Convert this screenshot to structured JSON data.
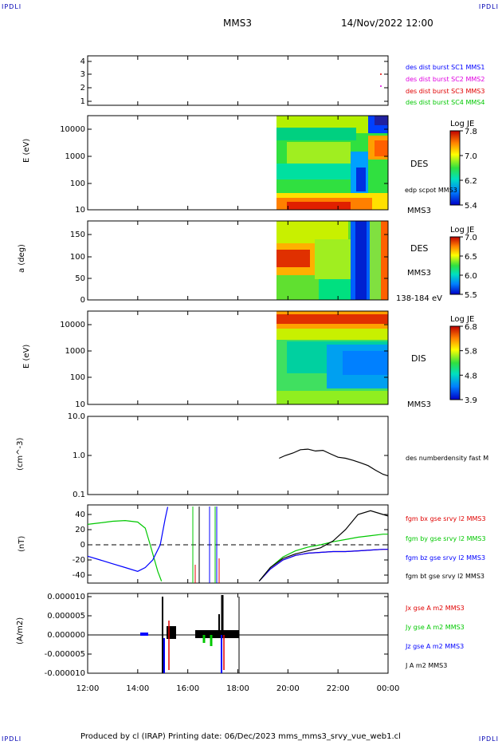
{
  "header": {
    "corner_tl": "IPDLI",
    "corner_tr": "IPDLI",
    "corner_bl": "IPDLI",
    "corner_br": "IPDLI",
    "spacecraft": "MMS3",
    "datetime": "14/Nov/2022 12:00"
  },
  "footer": {
    "text": "Produced by cl (IRAP)   Printing date: 06/Dec/2023   mms_mms3_srvy_vue_web1.cl"
  },
  "colors": {
    "blue": "#0000ff",
    "magenta": "#e000e0",
    "red": "#e00000",
    "green": "#00c800",
    "black": "#000000"
  },
  "time_axis": {
    "ticks": [
      "12:00",
      "14:00",
      "16:00",
      "18:00",
      "20:00",
      "22:00",
      "00:00"
    ],
    "start_hour": 12,
    "end_hour": 24
  },
  "panels": {
    "burst": {
      "yticks": [
        "1",
        "2",
        "3",
        "4"
      ],
      "legend": [
        "des dist burst SC1 MMS1",
        "des dist burst SC2 MMS2",
        "des dist burst SC3 MMS3",
        "des dist burst SC4 MMS4"
      ]
    },
    "des_energy": {
      "ylabel": "E (eV)",
      "yticks": [
        "10",
        "100",
        "1000",
        "10000"
      ],
      "label": "DES",
      "sublabel": "edp scpot MMS3",
      "sc": "MMS3",
      "cbar_title": "Log JE",
      "cbar_ticks": [
        "7.8",
        "7.0",
        "6.2",
        "5.4"
      ]
    },
    "des_pitch": {
      "ylabel": "a (deg)",
      "yticks": [
        "0",
        "50",
        "100",
        "150"
      ],
      "label": "DES",
      "sc": "MMS3",
      "energy_range": "138-184 eV",
      "cbar_title": "Log JE",
      "cbar_ticks": [
        "7.0",
        "6.5",
        "6.0",
        "5.5"
      ]
    },
    "dis_energy": {
      "ylabel": "E (eV)",
      "yticks": [
        "10",
        "100",
        "1000",
        "10000"
      ],
      "label": "DIS",
      "sc": "MMS3",
      "cbar_title": "Log JE",
      "cbar_ticks": [
        "6.8",
        "5.8",
        "4.8",
        "3.9"
      ]
    },
    "density": {
      "ylabel": "(cm^-3)",
      "yticks": [
        "0.1",
        "1.0",
        "10.0"
      ],
      "legend": [
        "des numberdensity fast M"
      ]
    },
    "bfield": {
      "ylabel": "(nT)",
      "yticks": [
        "-40",
        "-20",
        "0",
        "20",
        "40"
      ],
      "legend": [
        "fgm bx gse srvy l2 MMS3",
        "fgm by gse srvy l2 MMS3",
        "fgm bz gse srvy l2 MMS3",
        "fgm bt gse srvy l2 MMS3"
      ]
    },
    "current": {
      "ylabel": "(A/m2)",
      "yticks": [
        "-0.000010",
        "-0.000005",
        "0.000000",
        "0.000005",
        "0.000010"
      ],
      "legend": [
        "Jx gse A m2 MMS3",
        "Jy gse A m2 MMS3",
        "Jz gse A m2 MMS3",
        "J A m2 MMS3"
      ]
    }
  },
  "chart_data": [
    {
      "type": "line",
      "title": "",
      "xlabel": "",
      "ylabel": "(cm^-3)",
      "yscale": "log",
      "ylim": [
        0.1,
        10
      ],
      "series": [
        {
          "name": "des numberdensity fast M",
          "x": [
            19.65,
            19.9,
            20.2,
            20.5,
            20.8,
            21.1,
            21.4,
            21.7,
            22.0,
            22.3,
            22.6,
            22.9,
            23.2,
            23.5,
            23.8,
            24.0
          ],
          "y": [
            0.85,
            1.0,
            1.15,
            1.4,
            1.45,
            1.3,
            1.35,
            1.1,
            0.9,
            0.85,
            0.75,
            0.65,
            0.55,
            0.42,
            0.33,
            0.3
          ]
        }
      ]
    },
    {
      "type": "line",
      "title": "",
      "xlabel": "",
      "ylabel": "(nT)",
      "ylim": [
        -48,
        50
      ],
      "series": [
        {
          "name": "fgm bx gse srvy l2 MMS3",
          "x": [
            18.85,
            19.3,
            19.8,
            20.3,
            20.8,
            21.3,
            21.8,
            22.3,
            22.8,
            23.3,
            23.8,
            24.0
          ],
          "y": [
            -48,
            -32,
            -20,
            -14,
            -11,
            -10,
            -9,
            -9,
            -8,
            -7,
            -6,
            -6
          ]
        },
        {
          "name": "fgm by gse srvy l2 MMS3",
          "x": [
            12.0,
            12.5,
            13.0,
            13.5,
            14.0,
            14.3,
            14.5,
            14.8,
            14.95,
            18.85,
            19.3,
            19.8,
            20.3,
            20.8,
            21.3,
            21.8,
            22.3,
            22.8,
            23.3,
            23.8,
            24.0
          ],
          "y": [
            27,
            29,
            31,
            32,
            30,
            22,
            0,
            -35,
            -48,
            -48,
            -30,
            -16,
            -8,
            -3,
            0,
            4,
            7,
            10,
            12,
            14,
            14
          ]
        },
        {
          "name": "fgm bz gse srvy l2 MMS3",
          "x": [
            12.0,
            12.5,
            13.0,
            13.5,
            14.0,
            14.3,
            14.6,
            14.9,
            15.1,
            15.2,
            18.85,
            19.3,
            19.8,
            20.3,
            20.8,
            21.3,
            21.8,
            22.3,
            22.8,
            23.3,
            23.8,
            24.0
          ],
          "y": [
            -15,
            -20,
            -25,
            -30,
            -35,
            -30,
            -20,
            0,
            35,
            50,
            -48,
            -32,
            -20,
            -14,
            -11,
            -10,
            -9,
            -9,
            -8,
            -7,
            -6,
            -6
          ]
        },
        {
          "name": "fgm bt gse srvy l2 MMS3",
          "x": [
            18.85,
            19.3,
            19.8,
            20.3,
            20.8,
            21.3,
            21.8,
            22.3,
            22.8,
            23.3,
            23.8,
            24.0
          ],
          "y": [
            -48,
            -30,
            -18,
            -12,
            -8,
            -4,
            5,
            20,
            40,
            45,
            40,
            38
          ]
        }
      ]
    }
  ]
}
